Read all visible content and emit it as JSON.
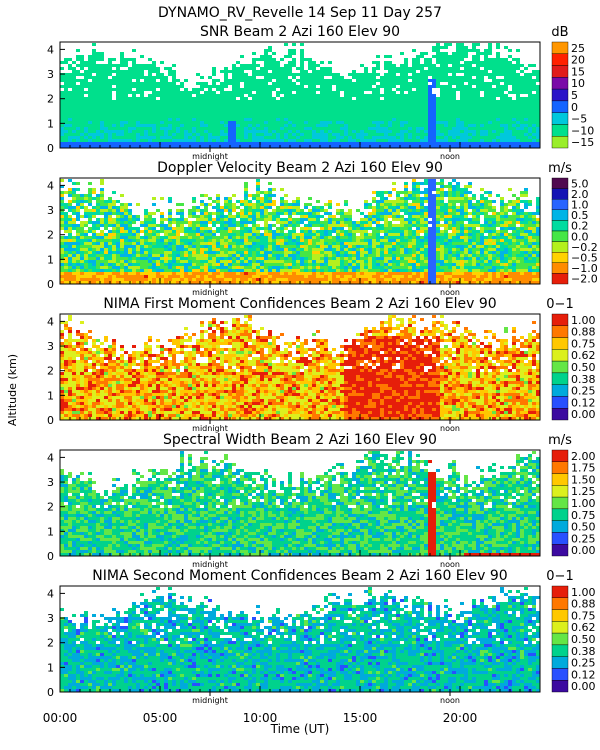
{
  "figure": {
    "title": "DYNAMO_RV_Revelle  14 Sep 11 Day 257",
    "ylabel": "Altitude (km)",
    "xlabel": "Time (UT)",
    "x_tick_labels": [
      "00:00",
      "05:00",
      "10:00",
      "15:00",
      "20:00"
    ],
    "marker_labels": [
      "midnight",
      "noon"
    ]
  },
  "chart_data": [
    {
      "type": "heatmap",
      "title": "SNR Beam 2 Azi 160 Elev 90",
      "units": "dB",
      "xlabel": "Time (UT)",
      "ylabel": "Altitude (km)",
      "xlim": [
        0,
        24
      ],
      "ylim": [
        0,
        4.3
      ],
      "y_ticks": [
        0,
        1,
        2,
        3,
        4
      ],
      "x_ticks_hours": [
        0,
        5,
        10,
        15,
        20
      ],
      "markers": [
        {
          "label": "midnight",
          "hour": 7.5
        },
        {
          "label": "noon",
          "hour": 19.5
        }
      ],
      "colorbar": {
        "labels": [
          "25",
          "20",
          "15",
          "10",
          "5",
          "0",
          "−5",
          "−10",
          "−15"
        ],
        "colors": [
          "#ff9600",
          "#ff2200",
          "#e01c1c",
          "#7a0aa8",
          "#2a14c8",
          "#1464ff",
          "#00c8dc",
          "#00e08c",
          "#9aee2a"
        ]
      }
    },
    {
      "type": "heatmap",
      "title": "Doppler Velocity Beam 2 Azi 160 Elev 90",
      "units": "m/s",
      "xlabel": "Time (UT)",
      "ylabel": "Altitude (km)",
      "xlim": [
        0,
        24
      ],
      "ylim": [
        0,
        4.3
      ],
      "y_ticks": [
        0,
        1,
        2,
        3,
        4
      ],
      "x_ticks_hours": [
        0,
        5,
        10,
        15,
        20
      ],
      "markers": [
        {
          "label": "midnight",
          "hour": 7.5
        },
        {
          "label": "noon",
          "hour": 19.5
        }
      ],
      "colorbar": {
        "labels": [
          "5.0",
          "2.0",
          "1.0",
          "0.5",
          "0.2",
          "0.0",
          "−0.2",
          "−0.5",
          "−1.0",
          "−2.0"
        ],
        "colors": [
          "#500a50",
          "#1414b4",
          "#2864ff",
          "#00b4e6",
          "#00dca0",
          "#46e646",
          "#b4f01e",
          "#ffd200",
          "#ff8c00",
          "#e61e0a"
        ]
      }
    },
    {
      "type": "heatmap",
      "title": "NIMA First Moment Confidences Beam 2 Azi 160 Elev 90",
      "units": "0−1",
      "xlabel": "Time (UT)",
      "ylabel": "Altitude (km)",
      "xlim": [
        0,
        24
      ],
      "ylim": [
        0,
        4.3
      ],
      "y_ticks": [
        0,
        1,
        2,
        3,
        4
      ],
      "x_ticks_hours": [
        0,
        5,
        10,
        15,
        20
      ],
      "markers": [
        {
          "label": "midnight",
          "hour": 7.5
        },
        {
          "label": "noon",
          "hour": 19.5
        }
      ],
      "colorbar": {
        "labels": [
          "1.00",
          "0.88",
          "0.75",
          "0.62",
          "0.50",
          "0.38",
          "0.25",
          "0.12",
          "0.00"
        ],
        "colors": [
          "#e61e0a",
          "#ff7800",
          "#ffc800",
          "#dcf01e",
          "#64e646",
          "#00d28c",
          "#00aadc",
          "#2850ff",
          "#3c0aa0"
        ]
      }
    },
    {
      "type": "heatmap",
      "title": "Spectral Width Beam 2 Azi 160 Elev 90",
      "units": "m/s",
      "xlabel": "Time (UT)",
      "ylabel": "Altitude (km)",
      "xlim": [
        0,
        24
      ],
      "ylim": [
        0,
        4.3
      ],
      "y_ticks": [
        0,
        1,
        2,
        3,
        4
      ],
      "x_ticks_hours": [
        0,
        5,
        10,
        15,
        20
      ],
      "markers": [
        {
          "label": "midnight",
          "hour": 7.5
        },
        {
          "label": "noon",
          "hour": 19.5
        }
      ],
      "colorbar": {
        "labels": [
          "2.00",
          "1.75",
          "1.50",
          "1.25",
          "1.00",
          "0.75",
          "0.50",
          "0.25",
          "0.00"
        ],
        "colors": [
          "#e61e0a",
          "#ff7800",
          "#ffc800",
          "#dcf01e",
          "#64e646",
          "#00d28c",
          "#00aadc",
          "#2850ff",
          "#3c0aa0"
        ]
      }
    },
    {
      "type": "heatmap",
      "title": "NIMA Second Moment Confidences Beam 2 Azi 160 Elev 90",
      "units": "0−1",
      "xlabel": "Time (UT)",
      "ylabel": "Altitude (km)",
      "xlim": [
        0,
        24
      ],
      "ylim": [
        0,
        4.3
      ],
      "y_ticks": [
        0,
        1,
        2,
        3,
        4
      ],
      "x_ticks_hours": [
        0,
        5,
        10,
        15,
        20
      ],
      "markers": [
        {
          "label": "midnight",
          "hour": 7.5
        },
        {
          "label": "noon",
          "hour": 19.5
        }
      ],
      "colorbar": {
        "labels": [
          "1.00",
          "0.88",
          "0.75",
          "0.62",
          "0.50",
          "0.38",
          "0.25",
          "0.12",
          "0.00"
        ],
        "colors": [
          "#e61e0a",
          "#ff7800",
          "#ffc800",
          "#dcf01e",
          "#64e646",
          "#00d28c",
          "#00aadc",
          "#2850ff",
          "#3c0aa0"
        ]
      }
    }
  ]
}
